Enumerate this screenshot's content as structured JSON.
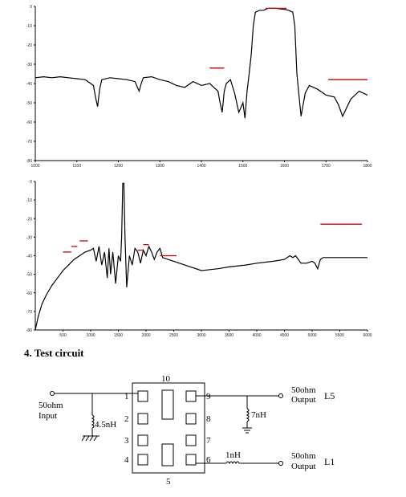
{
  "colors": {
    "trace": "#000000",
    "marker": "#cc0000",
    "axis": "#000000",
    "grid_text": "#222222"
  },
  "chart_data": [
    {
      "type": "line",
      "title": "",
      "xlabel": "",
      "ylabel": "",
      "xlim": [
        1000,
        1800
      ],
      "ylim": [
        -80,
        0
      ],
      "x_ticks": [
        "1000",
        "1100",
        "1200",
        "1300",
        "1400",
        "1500",
        "1600",
        "1700",
        "1800"
      ],
      "y_ticks": [
        "0",
        "-10",
        "-20",
        "-30",
        "-40",
        "-50",
        "-60",
        "-70",
        "-80"
      ],
      "series": [
        {
          "x": [
            1000,
            1020,
            1040,
            1060,
            1080,
            1100,
            1120,
            1140,
            1145,
            1150,
            1155,
            1160,
            1180,
            1200,
            1220,
            1240,
            1250,
            1255,
            1260,
            1280,
            1300,
            1320,
            1340,
            1360,
            1380,
            1400,
            1420,
            1440,
            1445,
            1450,
            1455,
            1460,
            1470,
            1480,
            1490,
            1500,
            1505,
            1510,
            1515,
            1520,
            1525,
            1530,
            1540,
            1550,
            1555,
            1560,
            1580,
            1600,
            1610,
            1620,
            1625,
            1630,
            1640,
            1650,
            1660,
            1680,
            1700,
            1720,
            1730,
            1740,
            1760,
            1780,
            1800
          ],
          "y": [
            -37,
            -36.5,
            -37,
            -36.5,
            -37,
            -37.5,
            -38,
            -41,
            -47,
            -52,
            -43,
            -38,
            -37,
            -37.5,
            -38,
            -39,
            -44,
            -40,
            -37,
            -36.5,
            -38,
            -39,
            -41,
            -42,
            -39,
            -41,
            -40,
            -44,
            -50,
            -55,
            -44,
            -40,
            -38,
            -45,
            -55,
            -50,
            -58,
            -44,
            -35,
            -25,
            -10,
            -3,
            -2,
            -2,
            -1.5,
            -1,
            -1,
            -1.5,
            -2,
            -3,
            -10,
            -35,
            -57,
            -45,
            -41,
            -43,
            -46,
            -47,
            -51,
            -57,
            -48,
            -44,
            -46
          ]
        }
      ],
      "markers": [
        {
          "x1": 1420,
          "x2": 1455,
          "y": -32
        },
        {
          "x1": 1555,
          "x2": 1605,
          "y": -1
        },
        {
          "x1": 1705,
          "x2": 1800,
          "y": -38
        }
      ]
    },
    {
      "type": "line",
      "title": "",
      "xlabel": "",
      "ylabel": "",
      "xlim": [
        0,
        6000
      ],
      "ylim": [
        -80,
        0
      ],
      "x_ticks": [
        "500",
        "1000",
        "1500",
        "2000",
        "2500",
        "3000",
        "3500",
        "4000",
        "4500",
        "5000",
        "5500",
        "6000"
      ],
      "y_ticks": [
        "0",
        "-10",
        "-20",
        "-30",
        "-40",
        "-50",
        "-60",
        "-70",
        "-80"
      ],
      "series": [
        {
          "x": [
            0,
            50,
            120,
            200,
            300,
            400,
            500,
            600,
            700,
            800,
            900,
            1000,
            1050,
            1100,
            1150,
            1200,
            1250,
            1300,
            1330,
            1360,
            1400,
            1450,
            1500,
            1540,
            1560,
            1580,
            1600,
            1620,
            1650,
            1700,
            1750,
            1800,
            1850,
            1900,
            1950,
            2000,
            2050,
            2100,
            2150,
            2200,
            2250,
            2300,
            2500,
            2700,
            3000,
            3300,
            3500,
            3800,
            4000,
            4300,
            4500,
            4600,
            4650,
            4700,
            4750,
            4800,
            4900,
            5000,
            5050,
            5100,
            5150,
            5200,
            5400,
            5600,
            5800,
            6000
          ],
          "y": [
            -80,
            -73,
            -66,
            -61,
            -56,
            -52,
            -48,
            -45,
            -42,
            -40,
            -38,
            -37,
            -36,
            -43,
            -35,
            -45,
            -38,
            -52,
            -36,
            -50,
            -38,
            -55,
            -40,
            -43,
            -30,
            -1,
            -1,
            -30,
            -57,
            -40,
            -45,
            -36,
            -38,
            -44,
            -37,
            -40,
            -35,
            -38,
            -42,
            -38,
            -36,
            -41,
            -43,
            -45,
            -48,
            -47,
            -46,
            -45,
            -44,
            -43,
            -42,
            -40,
            -41,
            -40,
            -42,
            -44,
            -44,
            -43,
            -44,
            -47,
            -42,
            -41,
            -41,
            -41,
            -41,
            -41
          ]
        }
      ],
      "markers": [
        {
          "x1": 500,
          "x2": 650,
          "y": -38
        },
        {
          "x1": 650,
          "x2": 760,
          "y": -35
        },
        {
          "x1": 800,
          "x2": 950,
          "y": -32
        },
        {
          "x1": 1850,
          "x2": 1950,
          "y": -37
        },
        {
          "x1": 1950,
          "x2": 2050,
          "y": -34
        },
        {
          "x1": 2250,
          "x2": 2550,
          "y": -40
        },
        {
          "x1": 5150,
          "x2": 5900,
          "y": -23
        }
      ]
    }
  ],
  "section": {
    "title": "4. Test circuit"
  },
  "circuit": {
    "chip_top_pin": "10",
    "chip_bottom_pin": "5",
    "pins_left": [
      "1",
      "2",
      "3",
      "4"
    ],
    "pins_right": [
      "9",
      "8",
      "7",
      "6"
    ],
    "input_label_1": "50ohm",
    "input_label_2": "Input",
    "input_inductor": "4.5nH",
    "shunt_inductor_out": "7nH",
    "series_inductor": "1nH",
    "out1_label_1": "50ohm",
    "out1_label_2": "Output",
    "out1_name": "L5",
    "out2_label_1": "50ohm",
    "out2_label_2": "Output",
    "out2_name": "L1"
  }
}
